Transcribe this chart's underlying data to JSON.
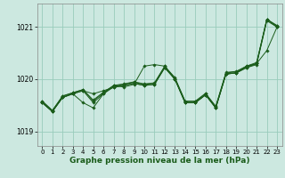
{
  "xlabel": "Graphe pression niveau de la mer (hPa)",
  "background_color": "#cce8e0",
  "grid_color": "#99ccbb",
  "line_color": "#1a5c1a",
  "xlim": [
    -0.5,
    23.5
  ],
  "ylim": [
    1018.72,
    1021.45
  ],
  "yticks": [
    1019,
    1020,
    1021
  ],
  "xticks": [
    0,
    1,
    2,
    3,
    4,
    5,
    6,
    7,
    8,
    9,
    10,
    11,
    12,
    13,
    14,
    15,
    16,
    17,
    18,
    19,
    20,
    21,
    22,
    23
  ],
  "series": [
    [
      1019.55,
      1019.38,
      1019.65,
      1019.72,
      1019.78,
      1019.72,
      1019.78,
      1019.84,
      1019.88,
      1019.92,
      1019.88,
      1019.9,
      1020.22,
      1020.0,
      1019.55,
      1019.55,
      1019.7,
      1019.45,
      1020.1,
      1020.12,
      1020.22,
      1020.3,
      1021.15,
      1021.0
    ],
    [
      1019.55,
      1019.38,
      1019.65,
      1019.72,
      1019.55,
      1019.45,
      1019.72,
      1019.88,
      1019.85,
      1019.9,
      1020.25,
      1020.28,
      1020.25,
      1020.0,
      1019.55,
      1019.55,
      1019.7,
      1019.45,
      1020.1,
      1020.12,
      1020.25,
      1020.3,
      1020.55,
      1021.0
    ],
    [
      1019.55,
      1019.38,
      1019.65,
      1019.72,
      1019.78,
      1019.55,
      1019.72,
      1019.85,
      1019.88,
      1019.92,
      1019.88,
      1019.9,
      1020.22,
      1020.0,
      1019.55,
      1019.55,
      1019.7,
      1019.45,
      1020.1,
      1020.12,
      1020.22,
      1020.28,
      1021.12,
      1021.0
    ],
    [
      1019.58,
      1019.4,
      1019.67,
      1019.74,
      1019.8,
      1019.58,
      1019.74,
      1019.87,
      1019.9,
      1019.94,
      1019.9,
      1019.92,
      1020.24,
      1020.02,
      1019.57,
      1019.57,
      1019.72,
      1019.47,
      1020.12,
      1020.14,
      1020.24,
      1020.3,
      1021.14,
      1021.02
    ],
    [
      1019.58,
      1019.4,
      1019.68,
      1019.74,
      1019.8,
      1019.6,
      1019.75,
      1019.88,
      1019.91,
      1019.95,
      1019.91,
      1019.93,
      1020.25,
      1020.03,
      1019.58,
      1019.58,
      1019.73,
      1019.48,
      1020.13,
      1020.15,
      1020.25,
      1020.32,
      1021.15,
      1021.03
    ]
  ]
}
